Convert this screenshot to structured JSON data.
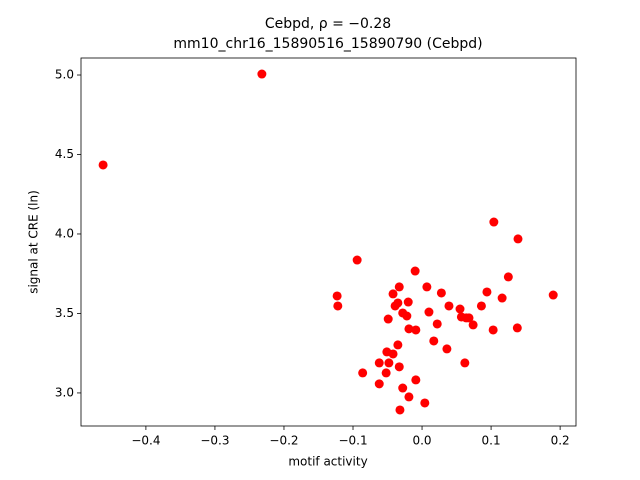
{
  "chart_data": {
    "type": "scatter",
    "title": "Cebpd, ρ = −0.28",
    "subtitle": "mm10_chr16_15890516_15890790 (Cebpd)",
    "x_label": "motif activity",
    "y_label": "signal at CRE (ln)",
    "color": "#ff0000",
    "xlim": [
      -0.494,
      0.223
    ],
    "ylim": [
      2.792,
      5.107
    ],
    "xticks": [
      {
        "value": -0.4,
        "label": "−0.4"
      },
      {
        "value": -0.3,
        "label": "−0.3"
      },
      {
        "value": -0.2,
        "label": "−0.2"
      },
      {
        "value": -0.1,
        "label": "−0.1"
      },
      {
        "value": 0,
        "label": "0.0"
      },
      0.1,
      0.2
    ],
    "yticks": [
      {
        "value": 3,
        "label": "3.0"
      },
      3.5,
      {
        "value": 4,
        "label": "4.0"
      },
      4.5,
      {
        "value": 5,
        "label": "5.0"
      }
    ],
    "x": [
      -0.232,
      -0.462,
      -0.094,
      0.104,
      0.139,
      0.125,
      0.19,
      -0.123,
      -0.122,
      -0.01,
      -0.033,
      -0.042,
      0.007,
      0.028,
      0.094,
      0.116,
      -0.02,
      -0.035,
      -0.039,
      0.086,
      0.039,
      0.055,
      -0.028,
      -0.022,
      0.01,
      -0.049,
      0.057,
      0.068,
      0.064,
      0.074,
      0.022,
      -0.019,
      -0.009,
      0.103,
      0.138,
      0.017,
      -0.035,
      0.036,
      -0.051,
      -0.042,
      -0.062,
      -0.048,
      -0.033,
      -0.052,
      -0.086,
      0.062,
      -0.009,
      -0.062,
      -0.028,
      -0.019,
      0.004,
      -0.032
    ],
    "values": [
      5.006,
      4.434,
      3.836,
      4.075,
      3.969,
      3.73,
      3.616,
      3.61,
      3.547,
      3.767,
      3.667,
      3.623,
      3.667,
      3.629,
      3.635,
      3.597,
      3.572,
      3.566,
      3.547,
      3.547,
      3.547,
      3.528,
      3.503,
      3.484,
      3.509,
      3.465,
      3.478,
      3.472,
      3.472,
      3.428,
      3.434,
      3.403,
      3.396,
      3.396,
      3.409,
      3.327,
      3.302,
      3.277,
      3.258,
      3.245,
      3.189,
      3.189,
      3.164,
      3.126,
      3.126,
      3.189,
      3.082,
      3.057,
      3.031,
      2.975,
      2.937,
      2.893
    ]
  }
}
